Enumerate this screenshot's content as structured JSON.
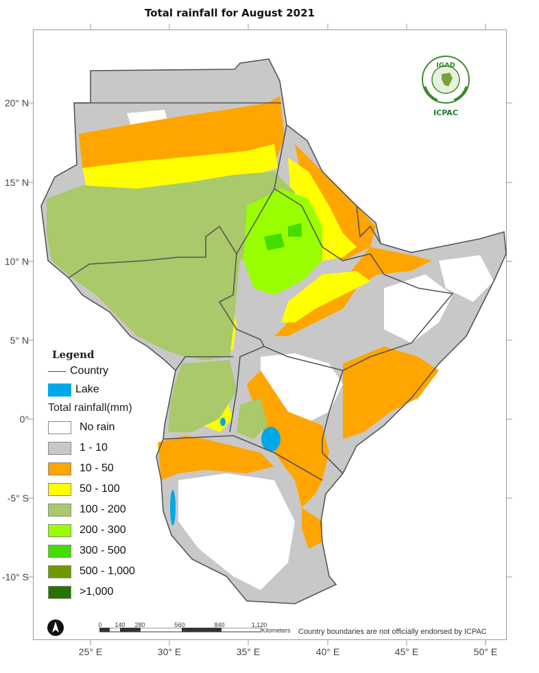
{
  "title": "Total rainfall for  August 2021",
  "colors": {
    "background": "#ffffff",
    "no_rain": "#ffffff",
    "r_1_10": "#c8c8c8",
    "r_10_50": "#ffa500",
    "r_50_100": "#ffff00",
    "r_100_200": "#a9c96a",
    "r_200_300": "#99ff00",
    "r_300_500": "#44dd00",
    "r_500_1000": "#6e9a00",
    "r_gt_1000": "#267300",
    "lake": "#00a9e6",
    "country_border": "#555555"
  },
  "axes": {
    "lat_labels": [
      "20° N",
      "15° N",
      "10° N",
      "5° N",
      "0°",
      "-5° S",
      "-10° S"
    ],
    "lon_labels": [
      "25° E",
      "30° E",
      "35° E",
      "40° E",
      "45° E",
      "50° E"
    ]
  },
  "legend": {
    "heading": "Legend",
    "country_label": "Country",
    "lake_label": "Lake",
    "rainfall_title": "Total rainfall(mm)",
    "classes": [
      {
        "label": "No rain",
        "color": "#ffffff"
      },
      {
        "label": "1 - 10",
        "color": "#c8c8c8"
      },
      {
        "label": "10 - 50",
        "color": "#ffa500"
      },
      {
        "label": "50 - 100",
        "color": "#ffff00"
      },
      {
        "label": "100 - 200",
        "color": "#a9c96a"
      },
      {
        "label": "200 - 300",
        "color": "#99ff00"
      },
      {
        "label": "300 - 500",
        "color": "#44dd00"
      },
      {
        "label": "500 - 1,000",
        "color": "#6e9a00"
      },
      {
        "label": ">1,000",
        "color": "#267300"
      }
    ]
  },
  "scale_bar": {
    "ticks": [
      "0",
      "140",
      "280",
      "560",
      "840",
      "1,120"
    ],
    "units": "Kilometers"
  },
  "disclaimer": "Country boundaries are not officially endorsed by ICPAC",
  "logo": {
    "top_text": "IGAD",
    "bottom_text": "ICPAC"
  },
  "north_arrow_icon": "north-arrow-icon"
}
